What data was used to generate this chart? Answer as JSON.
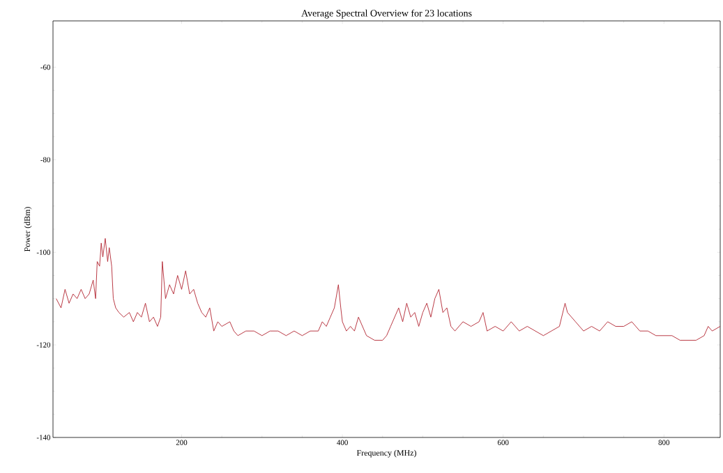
{
  "chart_data": {
    "type": "line",
    "title": "Average Spectral Overview for 23 locations",
    "xlabel": "Frequency (MHz)",
    "ylabel": "Power (dBm)",
    "xlim": [
      40,
      870
    ],
    "ylim": [
      -140,
      -50
    ],
    "xticks": [
      200,
      400,
      600,
      800
    ],
    "yticks": [
      -60,
      -80,
      -100,
      -120,
      -140
    ],
    "marker": "none",
    "line_style": "solid",
    "x": [
      44,
      50,
      55,
      60,
      65,
      70,
      75,
      80,
      85,
      90,
      93,
      95,
      98,
      100,
      102,
      105,
      108,
      110,
      113,
      115,
      118,
      122,
      128,
      135,
      140,
      145,
      150,
      155,
      160,
      165,
      170,
      174,
      176,
      180,
      185,
      190,
      195,
      200,
      205,
      210,
      215,
      220,
      225,
      230,
      235,
      240,
      245,
      250,
      260,
      265,
      270,
      280,
      290,
      300,
      310,
      320,
      330,
      340,
      350,
      360,
      370,
      375,
      380,
      385,
      390,
      395,
      398,
      400,
      405,
      410,
      415,
      420,
      425,
      430,
      440,
      450,
      455,
      460,
      465,
      470,
      475,
      480,
      485,
      490,
      495,
      500,
      505,
      510,
      515,
      520,
      525,
      530,
      535,
      540,
      550,
      560,
      570,
      575,
      580,
      590,
      600,
      610,
      620,
      630,
      640,
      650,
      660,
      670,
      677,
      680,
      685,
      690,
      700,
      710,
      720,
      730,
      740,
      750,
      760,
      770,
      780,
      790,
      800,
      810,
      820,
      830,
      840,
      850,
      855,
      860,
      870
    ],
    "series": [
      {
        "color": "#b22430",
        "values": [
          -110,
          -112,
          -108,
          -111,
          -109,
          -110,
          -108,
          -110,
          -109,
          -106,
          -110,
          -102,
          -103,
          -98,
          -101,
          -97,
          -102,
          -99,
          -103,
          -110,
          -112,
          -113,
          -114,
          -113,
          -115,
          -113,
          -114,
          -111,
          -115,
          -114,
          -116,
          -114,
          -102,
          -110,
          -107,
          -109,
          -105,
          -108,
          -104,
          -109,
          -108,
          -111,
          -113,
          -114,
          -112,
          -117,
          -115,
          -116,
          -115,
          -117,
          -118,
          -117,
          -117,
          -118,
          -117,
          -117,
          -118,
          -117,
          -118,
          -117,
          -117,
          -115,
          -116,
          -114,
          -112,
          -107,
          -112,
          -115,
          -117,
          -116,
          -117,
          -114,
          -116,
          -118,
          -119,
          -119,
          -118,
          -116,
          -114,
          -112,
          -115,
          -111,
          -114,
          -113,
          -116,
          -113,
          -111,
          -114,
          -110,
          -108,
          -113,
          -112,
          -116,
          -117,
          -115,
          -116,
          -115,
          -113,
          -117,
          -116,
          -117,
          -115,
          -117,
          -116,
          -117,
          -118,
          -117,
          -116,
          -111,
          -113,
          -114,
          -115,
          -117,
          -116,
          -117,
          -115,
          -116,
          -116,
          -115,
          -117,
          -117,
          -118,
          -118,
          -118,
          -119,
          -119,
          -119,
          -118,
          -116,
          -117,
          -116
        ]
      }
    ]
  }
}
